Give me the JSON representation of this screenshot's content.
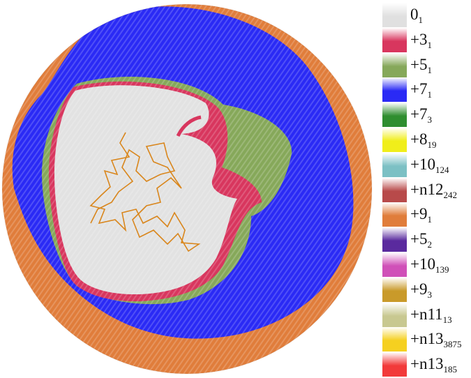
{
  "legend": {
    "items": [
      {
        "value": "0",
        "sub": "1",
        "color": "#e0e0e0"
      },
      {
        "value": "+3",
        "sub": "1",
        "color": "#d8365e"
      },
      {
        "value": "+5",
        "sub": "1",
        "color": "#86a85a"
      },
      {
        "value": "+7",
        "sub": "1",
        "color": "#2a2af5"
      },
      {
        "value": "+7",
        "sub": "3",
        "color": "#2f8e2f"
      },
      {
        "value": "+8",
        "sub": "19",
        "color": "#f0ee1a"
      },
      {
        "value": "+10",
        "sub": "124",
        "color": "#7cc0c4"
      },
      {
        "value": "+n12",
        "sub": "242",
        "color": "#b84a4a"
      },
      {
        "value": "+9",
        "sub": "1",
        "color": "#e07d3b"
      },
      {
        "value": "+5",
        "sub": "2",
        "color": "#5a2a9e"
      },
      {
        "value": "+10",
        "sub": "139",
        "color": "#d050b8"
      },
      {
        "value": "+9",
        "sub": "3",
        "color": "#c99a2a"
      },
      {
        "value": "+n11",
        "sub": "13",
        "color": "#c8c890"
      },
      {
        "value": "+n13",
        "sub": "3875",
        "color": "#f5d020"
      },
      {
        "value": "+n13",
        "sub": "185",
        "color": "#f23a3a"
      }
    ]
  },
  "map_colors": {
    "outer": "#e07d3b",
    "blue": "#2a2af5",
    "green": "#86a85a",
    "crimson": "#d8365e",
    "core": "#e2e2e2",
    "trajectory": "#d9861c"
  }
}
